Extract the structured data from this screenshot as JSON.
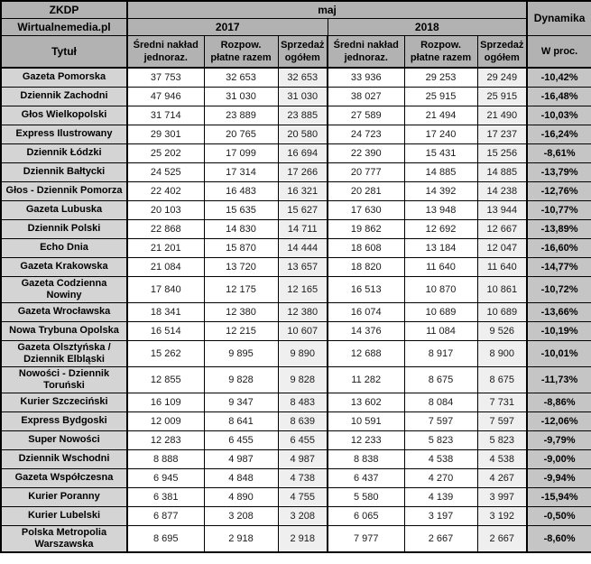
{
  "table": {
    "brand_line1": "ZKDP",
    "brand_line2": "Wirtualnemedia.pl",
    "month_label": "maj",
    "dynamics_label": "Dynamika",
    "year_left": "2017",
    "year_right": "2018",
    "title_column_header": "Tytuł",
    "percent_column_header": "W proc.",
    "subheaders": [
      "Średni nakład jednoraz.",
      "Rozpow. płatne razem",
      "Sprzedaż ogółem",
      "Średni nakład jednoraz.",
      "Rozpow. płatne razem",
      "Sprzedaż ogółem"
    ],
    "rows": [
      {
        "title": "Gazeta Pomorska",
        "values": [
          "37 753",
          "32 653",
          "32 653",
          "33 936",
          "29 253",
          "29 249"
        ],
        "dynamics": "-10,42%"
      },
      {
        "title": "Dziennik Zachodni",
        "values": [
          "47 946",
          "31 030",
          "31 030",
          "38 027",
          "25 915",
          "25 915"
        ],
        "dynamics": "-16,48%"
      },
      {
        "title": "Głos Wielkopolski",
        "values": [
          "31 714",
          "23 889",
          "23 885",
          "27 589",
          "21 494",
          "21 490"
        ],
        "dynamics": "-10,03%"
      },
      {
        "title": "Express Ilustrowany",
        "values": [
          "29 301",
          "20 765",
          "20 580",
          "24 723",
          "17 240",
          "17 237"
        ],
        "dynamics": "-16,24%"
      },
      {
        "title": "Dziennik Łódzki",
        "values": [
          "25 202",
          "17 099",
          "16 694",
          "22 390",
          "15 431",
          "15 256"
        ],
        "dynamics": "-8,61%"
      },
      {
        "title": "Dziennik Bałtycki",
        "values": [
          "24 525",
          "17 314",
          "17 266",
          "20 777",
          "14 885",
          "14 885"
        ],
        "dynamics": "-13,79%"
      },
      {
        "title": "Głos - Dziennik Pomorza",
        "values": [
          "22 402",
          "16 483",
          "16 321",
          "20 281",
          "14 392",
          "14 238"
        ],
        "dynamics": "-12,76%"
      },
      {
        "title": "Gazeta Lubuska",
        "values": [
          "20 103",
          "15 635",
          "15 627",
          "17 630",
          "13 948",
          "13 944"
        ],
        "dynamics": "-10,77%"
      },
      {
        "title": "Dziennik Polski",
        "values": [
          "22 868",
          "14 830",
          "14 711",
          "19 862",
          "12 692",
          "12 667"
        ],
        "dynamics": "-13,89%"
      },
      {
        "title": "Echo Dnia",
        "values": [
          "21 201",
          "15 870",
          "14 444",
          "18 608",
          "13 184",
          "12 047"
        ],
        "dynamics": "-16,60%"
      },
      {
        "title": "Gazeta Krakowska",
        "values": [
          "21 084",
          "13 720",
          "13 657",
          "18 820",
          "11 640",
          "11 640"
        ],
        "dynamics": "-14,77%"
      },
      {
        "title": "Gazeta Codzienna Nowiny",
        "values": [
          "17 840",
          "12 175",
          "12 165",
          "16 513",
          "10 870",
          "10 861"
        ],
        "dynamics": "-10,72%"
      },
      {
        "title": "Gazeta Wrocławska",
        "values": [
          "18 341",
          "12 380",
          "12 380",
          "16 074",
          "10 689",
          "10 689"
        ],
        "dynamics": "-13,66%"
      },
      {
        "title": "Nowa Trybuna Opolska",
        "values": [
          "16 514",
          "12 215",
          "10 607",
          "14 376",
          "11 084",
          "9 526"
        ],
        "dynamics": "-10,19%"
      },
      {
        "title": "Gazeta Olsztyńska / Dziennik Elbląski",
        "values": [
          "15 262",
          "9 895",
          "9 890",
          "12 688",
          "8 917",
          "8 900"
        ],
        "dynamics": "-10,01%"
      },
      {
        "title": "Nowości - Dziennik Toruński",
        "values": [
          "12 855",
          "9 828",
          "9 828",
          "11 282",
          "8 675",
          "8 675"
        ],
        "dynamics": "-11,73%"
      },
      {
        "title": "Kurier Szczeciński",
        "values": [
          "16 109",
          "9 347",
          "8 483",
          "13 602",
          "8 084",
          "7 731"
        ],
        "dynamics": "-8,86%"
      },
      {
        "title": "Express Bydgoski",
        "values": [
          "12 009",
          "8 641",
          "8 639",
          "10 591",
          "7 597",
          "7 597"
        ],
        "dynamics": "-12,06%"
      },
      {
        "title": "Super Nowości",
        "values": [
          "12 283",
          "6 455",
          "6 455",
          "12 233",
          "5 823",
          "5 823"
        ],
        "dynamics": "-9,79%"
      },
      {
        "title": "Dziennik Wschodni",
        "values": [
          "8 888",
          "4 987",
          "4 987",
          "8 838",
          "4 538",
          "4 538"
        ],
        "dynamics": "-9,00%"
      },
      {
        "title": "Gazeta Współczesna",
        "values": [
          "6 945",
          "4 848",
          "4 738",
          "6 437",
          "4 270",
          "4 267"
        ],
        "dynamics": "-9,94%"
      },
      {
        "title": "Kurier Poranny",
        "values": [
          "6 381",
          "4 890",
          "4 755",
          "5 580",
          "4 139",
          "3 997"
        ],
        "dynamics": "-15,94%"
      },
      {
        "title": "Kurier Lubelski",
        "values": [
          "6 877",
          "3 208",
          "3 208",
          "6 065",
          "3 197",
          "3 192"
        ],
        "dynamics": "-0,50%"
      },
      {
        "title": "Polska Metropolia Warszawska",
        "values": [
          "8 695",
          "2 918",
          "2 918",
          "7 977",
          "2 667",
          "2 667"
        ],
        "dynamics": "-8,60%"
      }
    ]
  },
  "colors": {
    "header_bg": "#b2b2b2",
    "title_cell_bg": "#d4d4d4",
    "percent_cell_bg": "#c5c5c5",
    "shaded_column_bg": "#efefef",
    "data_cell_bg": "#ffffff",
    "border": "#000000"
  }
}
